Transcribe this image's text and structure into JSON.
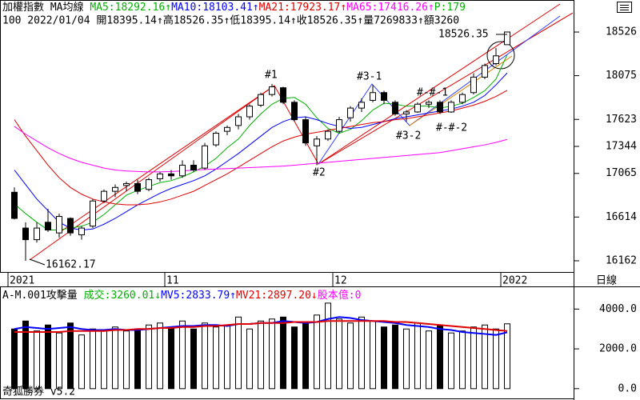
{
  "chart_data": [
    {
      "type": "candlestick",
      "title_parts": [
        {
          "text": "加權指數 MA均線 ",
          "color": "#000000"
        },
        {
          "text": "MA5:18292.16↑",
          "color": "#00b000"
        },
        {
          "text": "MA10:18103.41↑",
          "color": "#0000ff"
        },
        {
          "text": "MA21:17923.17↑",
          "color": "#e00000"
        },
        {
          "text": "MA65:17416.26↑",
          "color": "#ff00ff"
        },
        {
          "text": "P:179",
          "color": "#00b000"
        }
      ],
      "subtitle": "100 2022/01/04 開18395.14↑高18526.35↑低18395.14↑收18526.35↑量7269833↑額3260",
      "categories": [
        "2021",
        null,
        null,
        null,
        null,
        null,
        null,
        null,
        null,
        null,
        null,
        null,
        null,
        null,
        "11",
        null,
        null,
        null,
        null,
        null,
        null,
        null,
        null,
        null,
        null,
        null,
        null,
        null,
        null,
        "12",
        null,
        null,
        null,
        null,
        null,
        null,
        null,
        null,
        null,
        null,
        null,
        null,
        null,
        null,
        "2022"
      ],
      "ohlc": [
        [
          16870,
          16920,
          16590,
          16600
        ],
        [
          16500,
          16560,
          16162.17,
          16380
        ],
        [
          16380,
          16560,
          16350,
          16500
        ],
        [
          16560,
          16700,
          16460,
          16480
        ],
        [
          16450,
          16650,
          16400,
          16620
        ],
        [
          16600,
          16610,
          16420,
          16450
        ],
        [
          16430,
          16520,
          16380,
          16500
        ],
        [
          16520,
          16800,
          16500,
          16780
        ],
        [
          16780,
          16900,
          16760,
          16880
        ],
        [
          16880,
          16950,
          16820,
          16920
        ],
        [
          16940,
          16980,
          16880,
          16960
        ],
        [
          16960,
          17000,
          16850,
          16880
        ],
        [
          16900,
          17020,
          16880,
          17000
        ],
        [
          17010,
          17080,
          16980,
          17060
        ],
        [
          17060,
          17100,
          17000,
          17040
        ],
        [
          17040,
          17200,
          17020,
          17150
        ],
        [
          17150,
          17200,
          17080,
          17100
        ],
        [
          17120,
          17380,
          17100,
          17350
        ],
        [
          17360,
          17500,
          17340,
          17480
        ],
        [
          17500,
          17560,
          17460,
          17540
        ],
        [
          17560,
          17680,
          17520,
          17650
        ],
        [
          17650,
          17780,
          17620,
          17760
        ],
        [
          17770,
          17900,
          17750,
          17880
        ],
        [
          17880,
          17990,
          17860,
          17960
        ],
        [
          17950,
          17960,
          17780,
          17800
        ],
        [
          17800,
          17820,
          17600,
          17620
        ],
        [
          17620,
          17650,
          17350,
          17380
        ],
        [
          17350,
          17450,
          17150,
          17420
        ],
        [
          17420,
          17520,
          17400,
          17500
        ],
        [
          17500,
          17650,
          17480,
          17620
        ],
        [
          17640,
          17760,
          17600,
          17740
        ],
        [
          17740,
          17840,
          17700,
          17800
        ],
        [
          17820,
          17980,
          17800,
          17900
        ],
        [
          17900,
          17920,
          17780,
          17820
        ],
        [
          17800,
          17820,
          17660,
          17680
        ],
        [
          17680,
          17720,
          17600,
          17700
        ],
        [
          17700,
          17800,
          17690,
          17780
        ],
        [
          17780,
          17820,
          17740,
          17800
        ],
        [
          17800,
          17820,
          17680,
          17700
        ],
        [
          17700,
          17820,
          17690,
          17800
        ],
        [
          17800,
          17900,
          17780,
          17880
        ],
        [
          17900,
          18100,
          17880,
          18060
        ],
        [
          18060,
          18200,
          18040,
          18180
        ],
        [
          18200,
          18360,
          18180,
          18280
        ],
        [
          18395.14,
          18526.35,
          18395.14,
          18526.35
        ]
      ],
      "series": [
        {
          "name": "MA5",
          "color": "#00b000",
          "values": [
            16750,
            16650,
            16560,
            16480,
            16480,
            16500,
            16520,
            16560,
            16640,
            16740,
            16840,
            16890,
            16930,
            16970,
            16990,
            17030,
            17080,
            17140,
            17220,
            17330,
            17420,
            17560,
            17680,
            17780,
            17840,
            17850,
            17780,
            17640,
            17530,
            17480,
            17520,
            17610,
            17720,
            17790,
            17780,
            17760,
            17760,
            17760,
            17740,
            17760,
            17790,
            17850,
            17920,
            18040,
            18292.16
          ]
        },
        {
          "name": "MA10",
          "color": "#0000ff",
          "values": [
            17100,
            16950,
            16800,
            16680,
            16560,
            16500,
            16480,
            16490,
            16540,
            16600,
            16670,
            16740,
            16800,
            16860,
            16910,
            16950,
            16990,
            17040,
            17110,
            17190,
            17270,
            17360,
            17450,
            17540,
            17600,
            17640,
            17650,
            17620,
            17580,
            17550,
            17530,
            17540,
            17570,
            17600,
            17630,
            17650,
            17670,
            17690,
            17710,
            17730,
            17760,
            17800,
            17870,
            17980,
            18103.41
          ]
        },
        {
          "name": "MA21",
          "color": "#e00000",
          "values": [
            17620,
            17450,
            17300,
            17150,
            17020,
            16920,
            16850,
            16800,
            16770,
            16750,
            16740,
            16740,
            16750,
            16770,
            16800,
            16840,
            16880,
            16940,
            17000,
            17060,
            17130,
            17200,
            17270,
            17340,
            17400,
            17440,
            17470,
            17490,
            17510,
            17530,
            17550,
            17570,
            17590,
            17600,
            17620,
            17630,
            17650,
            17670,
            17690,
            17710,
            17740,
            17770,
            17810,
            17860,
            17923.17
          ]
        },
        {
          "name": "MA65",
          "color": "#ff00ff",
          "values": [
            17550,
            17470,
            17400,
            17330,
            17270,
            17220,
            17180,
            17150,
            17120,
            17100,
            17090,
            17085,
            17080,
            17080,
            17085,
            17090,
            17100,
            17105,
            17110,
            17115,
            17120,
            17125,
            17130,
            17135,
            17140,
            17150,
            17160,
            17170,
            17180,
            17190,
            17200,
            17210,
            17220,
            17230,
            17240,
            17250,
            17260,
            17270,
            17280,
            17300,
            17320,
            17340,
            17360,
            17385,
            17416.26
          ]
        }
      ],
      "ylim": [
        16046,
        18857
      ],
      "yticks": [
        18526,
        18075,
        17623,
        17344,
        17065,
        16614,
        16162
      ],
      "annotations": [
        "#1",
        "#2",
        "#3-1",
        "#3-2",
        "#-#-1",
        "#-#-2",
        "16162.17",
        "18526.35"
      ],
      "period": "日線"
    },
    {
      "type": "bar",
      "title_parts": [
        {
          "text": "A-M.001攻擊量 ",
          "color": "#000000"
        },
        {
          "text": "成交:3260.01↓",
          "color": "#00b000"
        },
        {
          "text": "MV5:2833.79↑",
          "color": "#0000ff"
        },
        {
          "text": "MV21:2897.20↓",
          "color": "#e00000"
        },
        {
          "text": "股本億:0",
          "color": "#ff00ff"
        }
      ],
      "values": [
        3000,
        3400,
        2900,
        3200,
        2800,
        3300,
        2700,
        3000,
        2900,
        3100,
        2900,
        3000,
        3200,
        3300,
        3100,
        3400,
        3000,
        3300,
        3100,
        3200,
        3600,
        3000,
        3400,
        3500,
        3600,
        3100,
        3300,
        3700,
        4300,
        3500,
        3300,
        3600,
        3400,
        3100,
        3200,
        3000,
        3300,
        2900,
        3200,
        2800,
        2900,
        3100,
        3200,
        3000,
        3260.01
      ],
      "series": [
        {
          "name": "MV5",
          "color": "#0000ff",
          "values": [
            3000,
            3100,
            3050,
            3000,
            3050,
            3100,
            3000,
            2950,
            2950,
            3000,
            2950,
            2950,
            3000,
            3050,
            3100,
            3150,
            3150,
            3200,
            3200,
            3150,
            3250,
            3250,
            3300,
            3300,
            3400,
            3350,
            3300,
            3350,
            3500,
            3600,
            3550,
            3450,
            3400,
            3350,
            3300,
            3200,
            3150,
            3100,
            3000,
            2950,
            2850,
            2800,
            2750,
            2700,
            2833.79
          ]
        },
        {
          "name": "MV21",
          "color": "#e00000",
          "values": [
            2850,
            2850,
            2850,
            2850,
            2850,
            2900,
            2900,
            2900,
            2900,
            2950,
            2950,
            3000,
            3000,
            3050,
            3050,
            3100,
            3100,
            3150,
            3150,
            3200,
            3250,
            3250,
            3300,
            3300,
            3300,
            3350,
            3350,
            3350,
            3400,
            3400,
            3400,
            3400,
            3400,
            3400,
            3350,
            3350,
            3300,
            3250,
            3200,
            3150,
            3100,
            3050,
            3000,
            2950,
            2897.2
          ]
        }
      ],
      "ylim": [
        -450,
        5060
      ],
      "yticks": [
        {
          "value": 4000,
          "label": "4000.0"
        },
        {
          "value": 2000,
          "label": "2000.0"
        },
        {
          "value": 0,
          "label": "0.0"
        }
      ],
      "footer": "奇狐勝券 v5.2"
    }
  ]
}
